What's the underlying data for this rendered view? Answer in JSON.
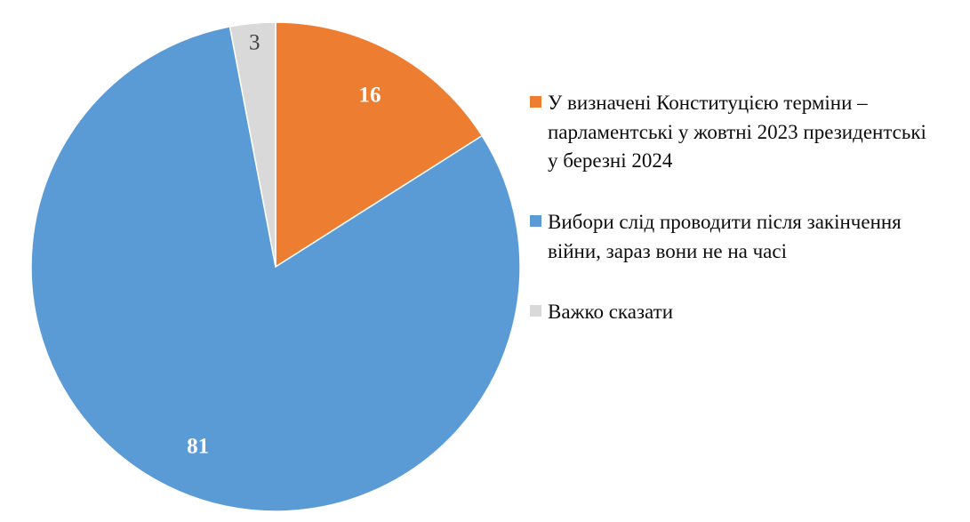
{
  "chart_data": {
    "type": "pie",
    "title": "",
    "start_angle_deg": 0,
    "direction": "clockwise",
    "legend_position": "right",
    "background_color": "#ffffff",
    "slices": [
      {
        "label": "У визначені Конституцією терміни – парламентські у жовтні 2023 президентські у березні 2024",
        "value": 16,
        "color": "#ED7D31",
        "label_color": "#ffffff",
        "label_weight": "bold"
      },
      {
        "label": "Вибори слід проводити після закінчення війни, зараз вони не на часі",
        "value": 81,
        "color": "#5B9BD5",
        "label_color": "#ffffff",
        "label_weight": "bold"
      },
      {
        "label": "Важко сказати",
        "value": 3,
        "color": "#D9D9D9",
        "label_color": "#404040",
        "label_weight": "normal"
      }
    ]
  }
}
